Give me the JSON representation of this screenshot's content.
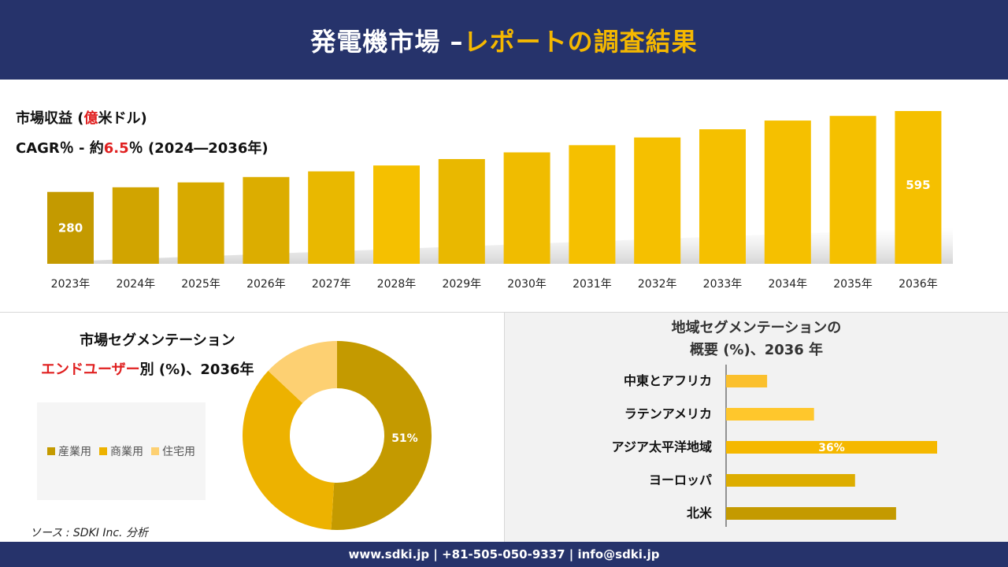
{
  "header": {
    "title_main": "発電機市場 –",
    "title_accent": "レポートの調査結果"
  },
  "revenue": {
    "label_prefix": "市場収益 (",
    "label_highlight": "億",
    "label_suffix": "米ドル)",
    "cagr_prefix": "CAGR％ - 約",
    "cagr_value": "6.5",
    "cagr_suffix": "％ (2024―2036年)"
  },
  "segment": {
    "title": "市場セグメンテーション",
    "subtitle_highlight": "エンドユーザー",
    "subtitle_rest": "別 (%)、2036年"
  },
  "region": {
    "title_line1": "地域セグメンテーションの",
    "title_line2": "概要 (%)、2036 年"
  },
  "source": "ソース : SDKI Inc. 分析",
  "footer": {
    "text": "www.sdki.jp | +81-505-050-9337 | info@sdki.jp"
  },
  "colors": {
    "navy": "#26336b",
    "gold": "#f5b800",
    "red": "#e02020"
  },
  "chart_data": [
    {
      "type": "bar",
      "title": "市場収益 (億米ドル)",
      "categories": [
        "2023年",
        "2024年",
        "2025年",
        "2026年",
        "2027年",
        "2028年",
        "2029年",
        "2030年",
        "2031年",
        "2032年",
        "2033年",
        "2034年",
        "2035年",
        "2036年"
      ],
      "values": [
        280,
        298,
        317,
        338,
        360,
        383,
        408,
        434,
        462,
        492,
        524,
        558,
        576,
        595
      ],
      "data_labels": {
        "0": "280",
        "13": "595"
      },
      "colors": [
        "#c49a00",
        "#d1a400",
        "#d8aa00",
        "#dcad00",
        "#e9b800",
        "#f5c000",
        "#e9b800",
        "#f0bc00",
        "#f5c000",
        "#f5c000",
        "#f5c000",
        "#f5c000",
        "#f5c000",
        "#f5c000"
      ]
    },
    {
      "type": "pie",
      "title": "市場セグメンテーション エンドユーザー別 (%)、2036年",
      "categories": [
        "産業用",
        "商業用",
        "住宅用"
      ],
      "values": [
        51,
        36,
        13
      ],
      "data_labels": {
        "0": "51%"
      },
      "colors": [
        "#c49a00",
        "#edb200",
        "#fdd072"
      ]
    },
    {
      "type": "bar",
      "orientation": "horizontal",
      "title": "地域セグメンテーションの概要 (%)、2036 年",
      "categories": [
        "中東とアフリカ",
        "ラテンアメリカ",
        "アジア太平洋地域",
        "ヨーロッパ",
        "北米"
      ],
      "values": [
        7,
        15,
        36,
        22,
        29
      ],
      "data_labels": {
        "2": "36%"
      },
      "colors": [
        "#fbc02d",
        "#ffc72c",
        "#f5b800",
        "#ddad00",
        "#c49a00"
      ]
    }
  ]
}
